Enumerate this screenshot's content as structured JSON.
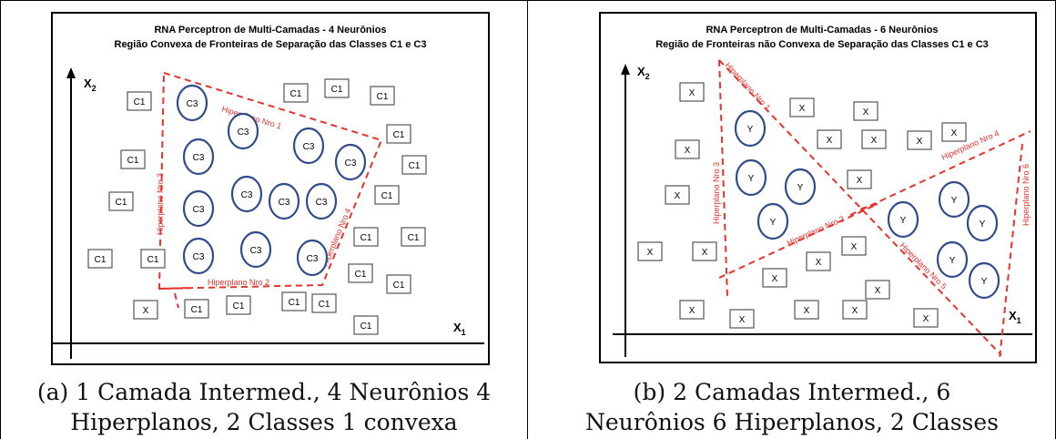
{
  "panels": [
    {
      "title_line1": "RNA Perceptron de Multi-Camadas - 4 Neurônios",
      "title_line2": "Região Convexa de Fronteiras de Separação das Classes C1 e C3",
      "axis_x": "X",
      "axis_x_sub": "1",
      "axis_y": "X",
      "axis_y_sub": "2",
      "hyperplanes": [
        "Hiperplano Nro 1",
        "Hiperplano Nro 2",
        "Hiperplano Nro 3",
        "Hiperplano Nro 4"
      ],
      "square_label": "C1",
      "square_label_alt": "X",
      "circle_label": "C3",
      "caption_line1": "(a) 1 Camada Intermed., 4 Neurônios 4",
      "caption_line2": "Hiperplanos, 2 Classes 1 convexa"
    },
    {
      "title_line1": "RNA Perceptron de Multi-Camadas - 6 Neurônios",
      "title_line2": "Região de Fronteiras não Convexa de Separação das Classes C1 e C3",
      "axis_x": "X",
      "axis_x_sub": "1",
      "axis_y": "X",
      "axis_y_sub": "2",
      "hyperplanes": [
        "Hiperplano Nro 1",
        "Hiperplano Nro 2",
        "Hiperplano Nro 3",
        "Hiperplano Nro 4",
        "Hiperplano Nro 5",
        "Hiperplano Nro 6"
      ],
      "square_label": "X",
      "circle_label": "Y",
      "caption_line1": "(b) 2 Camadas Intermed., 6",
      "caption_line2": "Neurônios 6 Hiperplanos, 2 Classes"
    }
  ],
  "colors": {
    "boundary": "#e8322c",
    "circle": "#2f4b8c",
    "square": "#555555"
  }
}
